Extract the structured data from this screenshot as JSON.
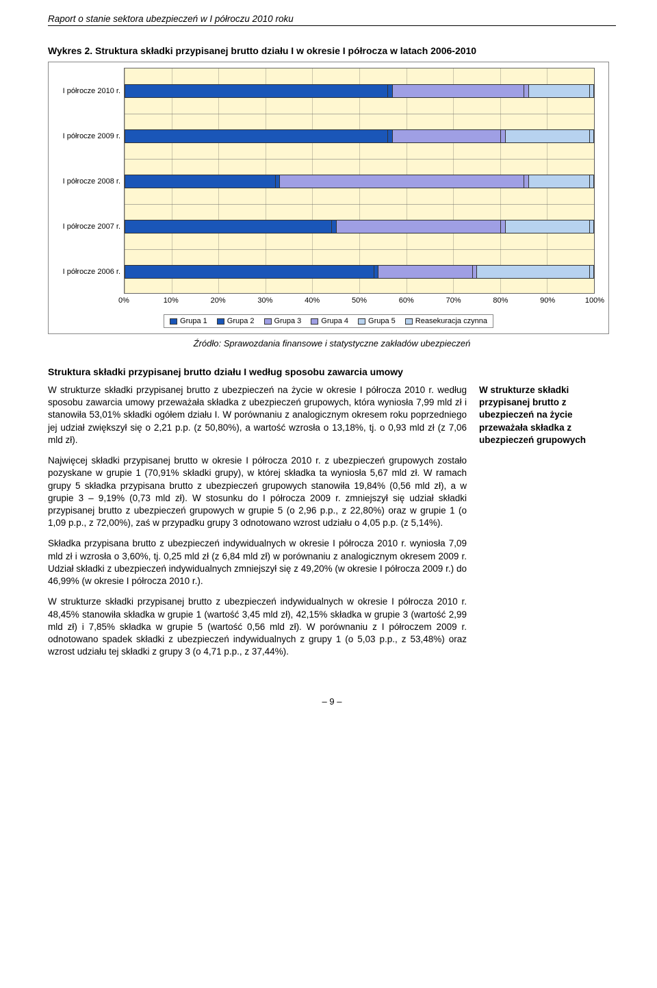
{
  "doc_header": "Raport o stanie sektora ubezpieczeń w I półroczu 2010 roku",
  "chart": {
    "title": "Wykres 2. Struktura składki przypisanej brutto działu I w okresie I półrocza w latach 2006-2010",
    "plot_bg": "#fff7d0",
    "grid_color": "#333333",
    "categories": [
      "I półrocze 2010 r.",
      "I półrocze 2009 r.",
      "I półrocze 2008 r.",
      "I półrocze 2007 r.",
      "I półrocze 2006 r."
    ],
    "series": [
      {
        "label": "Grupa 1",
        "color": "#1a56b8"
      },
      {
        "label": "Grupa 2",
        "color": "#1a56b8"
      },
      {
        "label": "Grupa 3",
        "color": "#9f9fe4"
      },
      {
        "label": "Grupa 4",
        "color": "#9f9fe4"
      },
      {
        "label": "Grupa 5",
        "color": "#b7d2ef"
      },
      {
        "label": "Reasekuracja czynna",
        "color": "#b7d2ef"
      }
    ],
    "values": [
      [
        56,
        1,
        28,
        1,
        13,
        1
      ],
      [
        56,
        1,
        23,
        1,
        18,
        1
      ],
      [
        32,
        1,
        52,
        1,
        13,
        1
      ],
      [
        44,
        1,
        35,
        1,
        18,
        1
      ],
      [
        53,
        1,
        20,
        1,
        24,
        1
      ]
    ],
    "x_ticks": [
      "0%",
      "10%",
      "20%",
      "30%",
      "40%",
      "50%",
      "60%",
      "70%",
      "80%",
      "90%",
      "100%"
    ]
  },
  "source_note": "Źródło: Sprawozdania finansowe i statystyczne zakładów ubezpieczeń",
  "section_heading": "Struktura składki przypisanej brutto działu I według sposobu zawarcia umowy",
  "paragraphs": [
    "W strukturze składki przypisanej brutto z ubezpieczeń na życie w okresie I półrocza 2010 r. według sposobu zawarcia umowy przeważała składka z ubezpieczeń grupowych, która wyniosła 7,99 mld zł i stanowiła 53,01% składki ogółem działu I. W porównaniu z analogicznym okresem roku poprzedniego jej udział zwiększył się o 2,21 p.p. (z 50,80%), a wartość wzrosła o 13,18%, tj. o 0,93 mld zł (z 7,06 mld zł).",
    "Najwięcej składki przypisanej brutto w okresie I półrocza 2010 r. z ubezpieczeń grupowych zostało pozyskane w grupie 1 (70,91% składki grupy), w której składka ta wyniosła 5,67 mld zł. W ramach grupy 5 składka przypisana brutto z ubezpieczeń grupowych stanowiła 19,84% (0,56 mld zł), a w grupie 3 – 9,19% (0,73 mld zł). W stosunku do I półrocza 2009 r. zmniejszył się udział składki przypisanej brutto z ubezpieczeń grupowych w grupie 5 (o 2,96 p.p., z 22,80%) oraz w grupie 1 (o 1,09 p.p., z 72,00%), zaś w przypadku grupy 3 odnotowano wzrost udziału o 4,05 p.p. (z 5,14%).",
    "Składka przypisana brutto z ubezpieczeń indywidualnych w okresie I półrocza 2010 r. wyniosła 7,09 mld zł i wzrosła o 3,60%, tj. 0,25 mld zł (z 6,84 mld zł) w porównaniu z analogicznym okresem 2009 r. Udział składki z ubezpieczeń indywidualnych zmniejszył się z 49,20% (w okresie I półrocza 2009 r.) do 46,99% (w okresie I półrocza 2010 r.).",
    "W strukturze składki przypisanej brutto z ubezpieczeń indywidualnych w okresie I półrocza 2010 r. 48,45% stanowiła składka w grupie 1 (wartość 3,45 mld zł), 42,15% składka w grupie 3 (wartość 2,99 mld zł) i 7,85% składka w grupie 5 (wartość 0,56 mld zł). W porównaniu z I półroczem 2009 r. odnotowano spadek składki z ubezpieczeń indywidualnych z grupy 1 (o 5,03 p.p., z 53,48%) oraz wzrost udziału tej składki z grupy 3 (o 4,71 p.p., z 37,44%)."
  ],
  "side_note": "W strukturze składki przypisanej brutto z ubezpieczeń na życie przeważała składka z ubezpieczeń grupowych",
  "page_number": "9"
}
